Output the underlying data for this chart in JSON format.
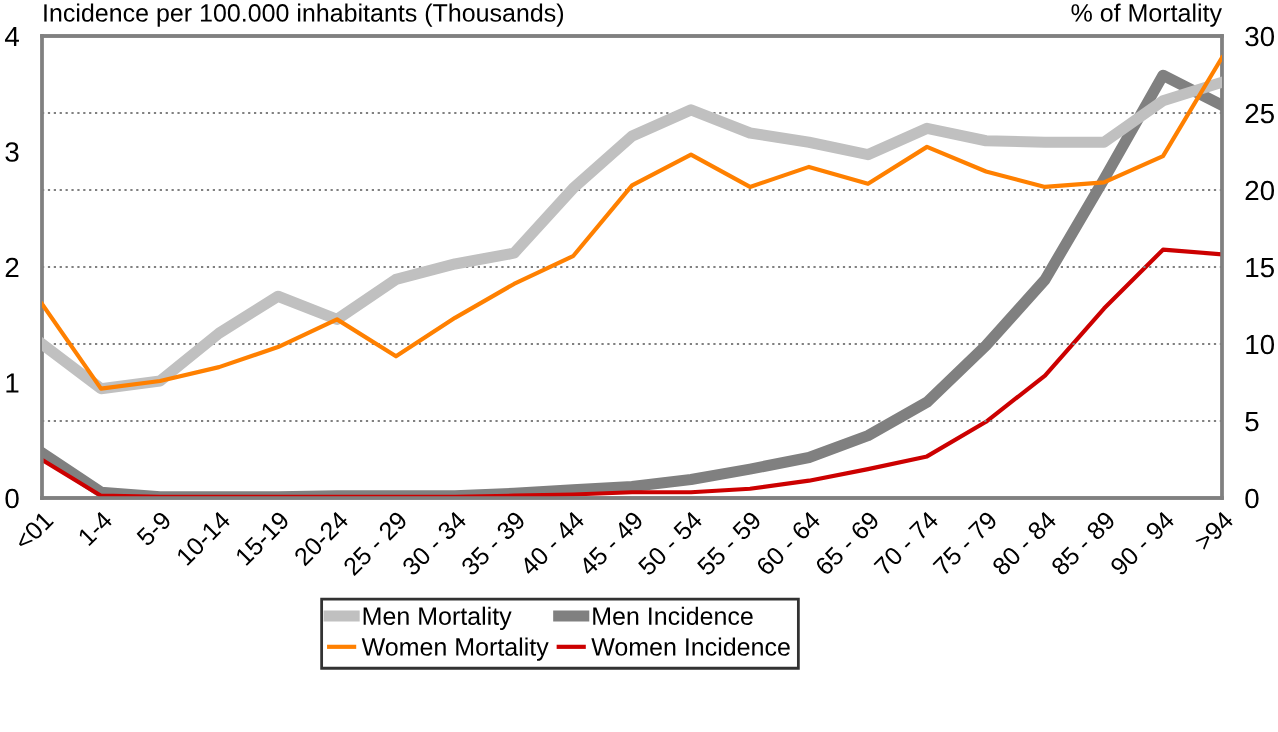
{
  "chart_data": {
    "type": "line",
    "ylabel": "Incidence per 100.000 inhabitants (Thousands)",
    "y2label": "% of Mortality",
    "categories": [
      "<01",
      "1-4",
      "5-9",
      "10-14",
      "15-19",
      "20-24",
      "25 - 29",
      "30 - 34",
      "35 - 39",
      "40 - 44",
      "45 - 49",
      "50 - 54",
      "55 - 59",
      "60 - 64",
      "65 - 69",
      "70 - 74",
      "75 - 79",
      "80 - 84",
      "85 - 89",
      "90 - 94",
      ">94"
    ],
    "series": [
      {
        "name": "Men Mortality",
        "color": "#c0c0c0",
        "axis": "y2",
        "values": [
          10.0,
          7.1,
          7.6,
          10.7,
          13.1,
          11.6,
          14.2,
          15.2,
          15.9,
          20.1,
          23.5,
          25.2,
          23.7,
          23.1,
          22.3,
          24.0,
          23.2,
          23.1,
          23.1,
          25.8,
          27.0
        ]
      },
      {
        "name": "Women Mortality",
        "color": "#ff8000",
        "axis": "y2",
        "values": [
          12.6,
          7.1,
          7.6,
          8.5,
          9.8,
          11.6,
          9.2,
          11.7,
          13.9,
          15.7,
          20.3,
          22.3,
          20.2,
          21.5,
          20.4,
          22.8,
          21.2,
          20.2,
          20.5,
          22.2,
          28.6
        ]
      },
      {
        "name": "Men Incidence",
        "color": "#808080",
        "values": [
          0.39,
          0.05,
          0.01,
          0.01,
          0.01,
          0.02,
          0.02,
          0.02,
          0.04,
          0.07,
          0.1,
          0.16,
          0.25,
          0.35,
          0.54,
          0.83,
          1.32,
          1.89,
          2.76,
          3.66,
          3.4
        ]
      },
      {
        "name": "Women Incidence",
        "color": "#cc0000",
        "values": [
          0.33,
          0.02,
          0.01,
          0.01,
          0.01,
          0.01,
          0.01,
          0.01,
          0.02,
          0.03,
          0.05,
          0.05,
          0.08,
          0.15,
          0.25,
          0.36,
          0.66,
          1.06,
          1.64,
          2.15,
          2.11
        ]
      }
    ],
    "ylim": [
      0,
      4
    ],
    "yticks": [
      0,
      1,
      2,
      3,
      4
    ],
    "y2lim": [
      0,
      30
    ],
    "y2ticks": [
      0,
      5,
      10,
      15,
      20,
      25,
      30
    ],
    "grid": "y2",
    "legend": "bottom",
    "marker": "none",
    "line_style": "solid"
  }
}
